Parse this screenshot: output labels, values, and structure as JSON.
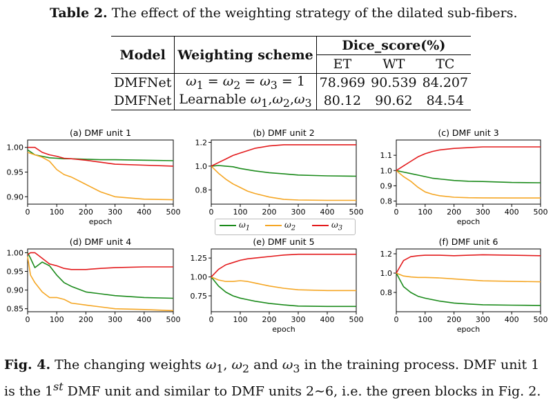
{
  "table": {
    "caption_label": "Table 2.",
    "caption_text": " The effect of the weighting strategy of the dilated sub-fibers.",
    "headers": {
      "model": "Model",
      "weighting": "Weighting scheme",
      "dice": "Dice_score(%)",
      "sub": [
        "ET",
        "WT",
        "TC"
      ]
    },
    "rows": [
      {
        "model": "DMFNet",
        "scheme": "ω1 = ω2 = ω3 = 1",
        "et": "78.969",
        "wt": "90.539",
        "tc": "84.207"
      },
      {
        "model": "DMFNet",
        "scheme": "Learnable ω1,ω2,ω3",
        "et": "80.12",
        "wt": "90.62",
        "tc": "84.54"
      }
    ]
  },
  "figure": {
    "caption_label": "Fig. 4.",
    "caption_text": " The changing weights ω1, ω2 and ω3 in the training process. DMF unit 1 is the 1st DMF unit and similar to DMF units 2∼6, i.e. the green blocks in Fig. 2."
  },
  "legend": [
    {
      "label": "ω1",
      "color": "#1a8a1a"
    },
    {
      "label": "ω2",
      "color": "#f5a623"
    },
    {
      "label": "ω3",
      "color": "#e31a1c"
    }
  ],
  "chart_data": [
    {
      "type": "line",
      "title": "(a) DMF unit 1",
      "xlabel": "epoch",
      "ylabel": "",
      "xlim": [
        0,
        500
      ],
      "ylim": [
        0.885,
        1.015
      ],
      "xticks": [
        0,
        100,
        200,
        300,
        400,
        500
      ],
      "yticks": [
        0.9,
        0.95,
        1.0
      ],
      "x": [
        0,
        25,
        50,
        75,
        100,
        125,
        150,
        200,
        250,
        300,
        400,
        500
      ],
      "series": [
        {
          "color": "#1a8a1a",
          "values": [
            0.995,
            0.985,
            0.982,
            0.979,
            0.978,
            0.977,
            0.977,
            0.976,
            0.975,
            0.975,
            0.974,
            0.973
          ]
        },
        {
          "color": "#f5a623",
          "values": [
            0.99,
            0.985,
            0.98,
            0.972,
            0.955,
            0.945,
            0.94,
            0.925,
            0.91,
            0.9,
            0.895,
            0.894
          ]
        },
        {
          "color": "#e31a1c",
          "values": [
            1.0,
            1.0,
            0.99,
            0.985,
            0.982,
            0.978,
            0.977,
            0.974,
            0.97,
            0.966,
            0.964,
            0.962
          ]
        }
      ]
    },
    {
      "type": "line",
      "title": "(b) DMF unit 2",
      "xlabel": "",
      "ylabel": "",
      "xlim": [
        0,
        500
      ],
      "ylim": [
        0.68,
        1.22
      ],
      "xticks": [
        0,
        100,
        200,
        300,
        400,
        500
      ],
      "yticks": [
        0.8,
        1.0,
        1.2
      ],
      "x": [
        0,
        25,
        50,
        75,
        100,
        125,
        150,
        200,
        250,
        300,
        400,
        500
      ],
      "series": [
        {
          "color": "#1a8a1a",
          "values": [
            1.0,
            1.005,
            1.0,
            0.995,
            0.98,
            0.97,
            0.96,
            0.945,
            0.935,
            0.925,
            0.918,
            0.915
          ]
        },
        {
          "color": "#f5a623",
          "values": [
            1.0,
            0.94,
            0.89,
            0.85,
            0.82,
            0.79,
            0.77,
            0.74,
            0.72,
            0.715,
            0.712,
            0.712
          ]
        },
        {
          "color": "#e31a1c",
          "values": [
            1.0,
            1.03,
            1.06,
            1.09,
            1.11,
            1.13,
            1.15,
            1.17,
            1.18,
            1.18,
            1.18,
            1.18
          ]
        }
      ]
    },
    {
      "type": "line",
      "title": "(c) DMF unit 3",
      "xlabel": "epoch",
      "ylabel": "",
      "xlim": [
        0,
        500
      ],
      "ylim": [
        0.78,
        1.2
      ],
      "xticks": [
        0,
        100,
        200,
        300,
        400,
        500
      ],
      "yticks": [
        0.8,
        0.9,
        1.0,
        1.1
      ],
      "x": [
        0,
        25,
        50,
        75,
        100,
        125,
        150,
        200,
        250,
        300,
        400,
        500
      ],
      "series": [
        {
          "color": "#1a8a1a",
          "values": [
            1.0,
            0.99,
            0.98,
            0.97,
            0.96,
            0.95,
            0.945,
            0.935,
            0.93,
            0.928,
            0.922,
            0.92
          ]
        },
        {
          "color": "#f5a623",
          "values": [
            1.0,
            0.96,
            0.93,
            0.89,
            0.86,
            0.845,
            0.835,
            0.825,
            0.822,
            0.821,
            0.82,
            0.82
          ]
        },
        {
          "color": "#e31a1c",
          "values": [
            1.0,
            1.03,
            1.06,
            1.09,
            1.11,
            1.125,
            1.135,
            1.145,
            1.15,
            1.155,
            1.155,
            1.155
          ]
        }
      ]
    },
    {
      "type": "line",
      "title": "(d) DMF unit 4",
      "xlabel": "",
      "ylabel": "",
      "xlim": [
        0,
        500
      ],
      "ylim": [
        0.842,
        1.01
      ],
      "xticks": [
        0,
        100,
        200,
        300,
        400,
        500
      ],
      "yticks": [
        0.85,
        0.9,
        0.95,
        1.0
      ],
      "x": [
        0,
        10,
        25,
        50,
        75,
        100,
        125,
        150,
        200,
        250,
        300,
        400,
        500
      ],
      "series": [
        {
          "color": "#1a8a1a",
          "values": [
            1.0,
            0.985,
            0.96,
            0.975,
            0.965,
            0.94,
            0.92,
            0.91,
            0.895,
            0.89,
            0.885,
            0.88,
            0.878
          ]
        },
        {
          "color": "#f5a623",
          "values": [
            0.99,
            0.94,
            0.92,
            0.895,
            0.88,
            0.88,
            0.875,
            0.865,
            0.86,
            0.855,
            0.85,
            0.848,
            0.845
          ]
        },
        {
          "color": "#e31a1c",
          "values": [
            0.995,
            1.0,
            1.0,
            0.985,
            0.97,
            0.965,
            0.958,
            0.955,
            0.955,
            0.958,
            0.96,
            0.962,
            0.962
          ]
        }
      ]
    },
    {
      "type": "line",
      "title": "(e) DMF unit 5",
      "xlabel": "epoch",
      "ylabel": "",
      "xlim": [
        0,
        500
      ],
      "ylim": [
        0.54,
        1.37
      ],
      "xticks": [
        0,
        100,
        200,
        300,
        400,
        500
      ],
      "yticks": [
        0.75,
        1.0,
        1.25
      ],
      "x": [
        0,
        25,
        50,
        75,
        100,
        125,
        150,
        200,
        250,
        300,
        400,
        500
      ],
      "series": [
        {
          "color": "#1a8a1a",
          "values": [
            1.0,
            0.88,
            0.8,
            0.75,
            0.72,
            0.7,
            0.68,
            0.65,
            0.63,
            0.615,
            0.61,
            0.61
          ]
        },
        {
          "color": "#f5a623",
          "values": [
            1.0,
            0.96,
            0.94,
            0.94,
            0.95,
            0.94,
            0.92,
            0.88,
            0.85,
            0.83,
            0.82,
            0.82
          ]
        },
        {
          "color": "#e31a1c",
          "values": [
            1.0,
            1.1,
            1.16,
            1.19,
            1.22,
            1.24,
            1.25,
            1.27,
            1.29,
            1.3,
            1.3,
            1.3
          ]
        }
      ]
    },
    {
      "type": "line",
      "title": "(f) DMF unit 6",
      "xlabel": "epoch",
      "ylabel": "",
      "xlim": [
        0,
        500
      ],
      "ylim": [
        0.6,
        1.25
      ],
      "xticks": [
        0,
        100,
        200,
        300,
        400,
        500
      ],
      "yticks": [
        0.8,
        1.0,
        1.2
      ],
      "x": [
        0,
        25,
        50,
        75,
        100,
        150,
        200,
        250,
        300,
        400,
        500
      ],
      "series": [
        {
          "color": "#1a8a1a",
          "values": [
            1.0,
            0.86,
            0.8,
            0.76,
            0.74,
            0.71,
            0.69,
            0.68,
            0.672,
            0.668,
            0.665
          ]
        },
        {
          "color": "#f5a623",
          "values": [
            1.0,
            0.97,
            0.96,
            0.955,
            0.955,
            0.95,
            0.94,
            0.93,
            0.92,
            0.915,
            0.91
          ]
        },
        {
          "color": "#e31a1c",
          "values": [
            1.0,
            1.13,
            1.17,
            1.18,
            1.185,
            1.185,
            1.18,
            1.185,
            1.19,
            1.185,
            1.18
          ]
        }
      ]
    }
  ]
}
